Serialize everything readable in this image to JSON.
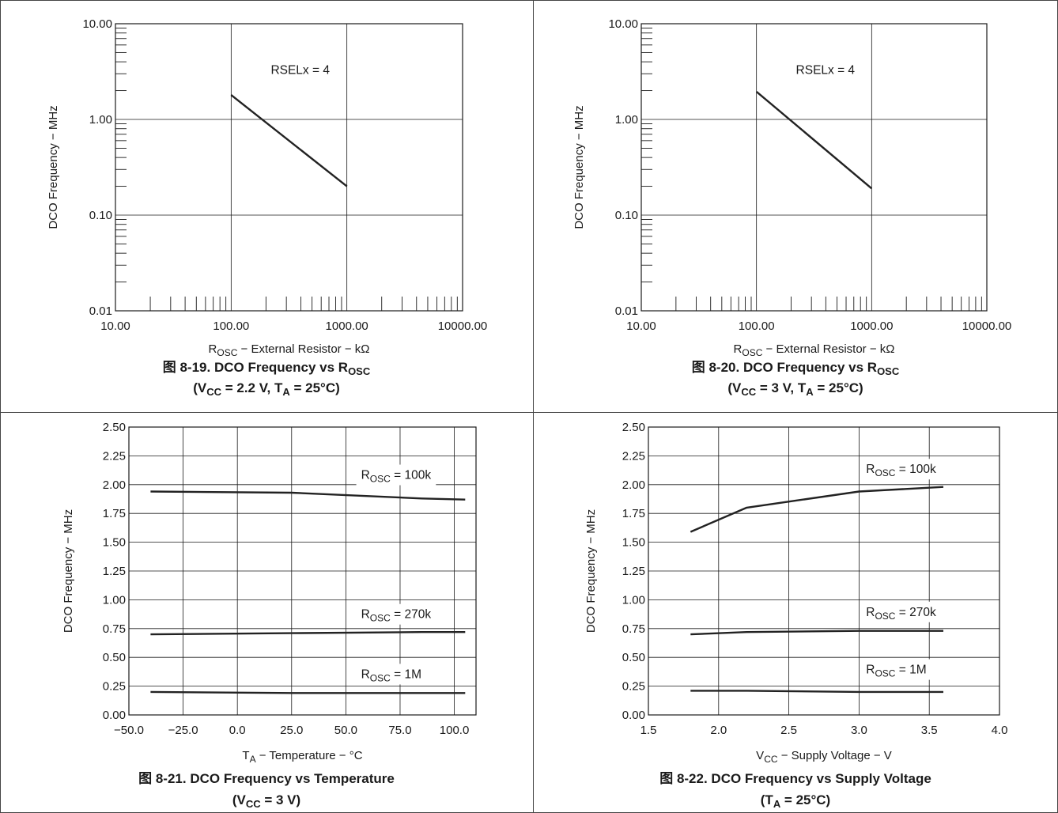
{
  "chart_data": [
    {
      "type": "line",
      "title": "DCO Frequency vs R",
      "title_number": "图 8-19.",
      "title_sub": "OSC",
      "conditions": {
        "pre": "(V",
        "sub": "CC",
        "mid": " = 2.2 V, T",
        "sub2": "A",
        "post": " = 25°C)"
      },
      "xscale": "log",
      "yscale": "log",
      "xlim": [
        10,
        10000
      ],
      "ylim": [
        0.01,
        10
      ],
      "xticks": [
        10,
        100,
        1000,
        10000
      ],
      "xtick_labels": [
        "10.00",
        "100.00",
        "1000.00",
        "10000.00"
      ],
      "yticks": [
        0.01,
        0.1,
        1,
        10
      ],
      "ytick_labels": [
        "0.01",
        "0.10",
        "1.00",
        "10.00"
      ],
      "xlabel": {
        "pre": "R",
        "sub": "OSC",
        "post": " − External Resistor − kΩ"
      },
      "ylabel": "DCO Frequency − MHz",
      "grid": true,
      "series": [
        {
          "name": "RSELx = 4",
          "x": [
            100,
            1000
          ],
          "y": [
            1.8,
            0.2
          ]
        }
      ],
      "annotations": [
        {
          "text": "RSELx = 4",
          "sub": "",
          "post": "",
          "x": 220,
          "y": 3.0
        }
      ]
    },
    {
      "type": "line",
      "title": "DCO Frequency vs R",
      "title_number": "图 8-20.",
      "title_sub": "OSC",
      "conditions": {
        "pre": "(V",
        "sub": "CC",
        "mid": " = 3 V, T",
        "sub2": "A",
        "post": " = 25°C)"
      },
      "xscale": "log",
      "yscale": "log",
      "xlim": [
        10,
        10000
      ],
      "ylim": [
        0.01,
        10
      ],
      "xticks": [
        10,
        100,
        1000,
        10000
      ],
      "xtick_labels": [
        "10.00",
        "100.00",
        "1000.00",
        "10000.00"
      ],
      "yticks": [
        0.01,
        0.1,
        1,
        10
      ],
      "ytick_labels": [
        "0.01",
        "0.10",
        "1.00",
        "10.00"
      ],
      "xlabel": {
        "pre": "R",
        "sub": "OSC",
        "post": " − External Resistor − kΩ"
      },
      "ylabel": "DCO Frequency − MHz",
      "grid": true,
      "series": [
        {
          "name": "RSELx = 4",
          "x": [
            100,
            1000
          ],
          "y": [
            1.95,
            0.19
          ]
        }
      ],
      "annotations": [
        {
          "text": "RSELx = 4",
          "sub": "",
          "post": "",
          "x": 220,
          "y": 3.0
        }
      ]
    },
    {
      "type": "line",
      "title": "DCO Frequency vs Temperature",
      "title_number": "图 8-21.",
      "title_sub": "",
      "conditions": {
        "pre": "(V",
        "sub": "CC",
        "mid": " = 3 V)",
        "sub2": "",
        "post": ""
      },
      "xscale": "linear",
      "yscale": "linear",
      "xlim": [
        -50,
        110
      ],
      "ylim": [
        0,
        2.5
      ],
      "xticks": [
        -50,
        -25,
        0,
        25,
        50,
        75,
        100
      ],
      "xtick_labels": [
        "−50.0",
        "−25.0",
        "0.0",
        "25.0",
        "50.0",
        "75.0",
        "100.0"
      ],
      "yticks": [
        0,
        0.25,
        0.5,
        0.75,
        1.0,
        1.25,
        1.5,
        1.75,
        2.0,
        2.25,
        2.5
      ],
      "ytick_labels": [
        "0.00",
        "0.25",
        "0.50",
        "0.75",
        "1.00",
        "1.25",
        "1.50",
        "1.75",
        "2.00",
        "2.25",
        "2.50"
      ],
      "xlabel": {
        "pre": "T",
        "sub": "A",
        "post": " − Temperature − °C"
      },
      "ylabel": "DCO Frequency − MHz",
      "grid": true,
      "series": [
        {
          "name": "R_OSC = 100k",
          "x": [
            -40,
            25,
            85,
            105
          ],
          "y": [
            1.94,
            1.93,
            1.88,
            1.87
          ]
        },
        {
          "name": "R_OSC = 270k",
          "x": [
            -40,
            25,
            85,
            105
          ],
          "y": [
            0.7,
            0.71,
            0.72,
            0.72
          ]
        },
        {
          "name": "R_OSC = 1M",
          "x": [
            -40,
            25,
            85,
            105
          ],
          "y": [
            0.2,
            0.19,
            0.19,
            0.19
          ]
        }
      ],
      "annotations": [
        {
          "text": "R",
          "sub": "OSC",
          "post": " = 100k",
          "x": 57,
          "y": 2.05
        },
        {
          "text": "R",
          "sub": "OSC",
          "post": " = 270k",
          "x": 57,
          "y": 0.84
        },
        {
          "text": "R",
          "sub": "OSC",
          "post": " = 1M",
          "x": 57,
          "y": 0.32
        }
      ]
    },
    {
      "type": "line",
      "title": "DCO Frequency vs Supply Voltage",
      "title_number": "图 8-22.",
      "title_sub": "",
      "conditions": {
        "pre": "(T",
        "sub": "A",
        "mid": " = 25°C)",
        "sub2": "",
        "post": ""
      },
      "xscale": "linear",
      "yscale": "linear",
      "xlim": [
        1.5,
        4.0
      ],
      "ylim": [
        0,
        2.5
      ],
      "xticks": [
        1.5,
        2.0,
        2.5,
        3.0,
        3.5,
        4.0
      ],
      "xtick_labels": [
        "1.5",
        "2.0",
        "2.5",
        "3.0",
        "3.5",
        "4.0"
      ],
      "yticks": [
        0,
        0.25,
        0.5,
        0.75,
        1.0,
        1.25,
        1.5,
        1.75,
        2.0,
        2.25,
        2.5
      ],
      "ytick_labels": [
        "0.00",
        "0.25",
        "0.50",
        "0.75",
        "1.00",
        "1.25",
        "1.50",
        "1.75",
        "2.00",
        "2.25",
        "2.50"
      ],
      "xlabel": {
        "pre": "V",
        "sub": "CC",
        "post": " − Supply Voltage − V"
      },
      "ylabel": "DCO Frequency − MHz",
      "grid": true,
      "series": [
        {
          "name": "R_OSC = 100k",
          "x": [
            1.8,
            2.2,
            3.0,
            3.6
          ],
          "y": [
            1.59,
            1.8,
            1.94,
            1.98
          ]
        },
        {
          "name": "R_OSC = 270k",
          "x": [
            1.8,
            2.2,
            3.0,
            3.6
          ],
          "y": [
            0.7,
            0.72,
            0.73,
            0.73
          ]
        },
        {
          "name": "R_OSC = 1M",
          "x": [
            1.8,
            2.2,
            3.0,
            3.6
          ],
          "y": [
            0.21,
            0.21,
            0.2,
            0.2
          ]
        }
      ],
      "annotations": [
        {
          "text": "R",
          "sub": "OSC",
          "post": " = 100k",
          "x": 3.05,
          "y": 2.1
        },
        {
          "text": "R",
          "sub": "OSC",
          "post": " = 270k",
          "x": 3.05,
          "y": 0.86
        },
        {
          "text": "R",
          "sub": "OSC",
          "post": " = 1M",
          "x": 3.05,
          "y": 0.36
        }
      ]
    }
  ],
  "colors": {
    "line": "#222222",
    "grid": "#1a1a1a",
    "frame": "#444444",
    "text": "#1a1a1a",
    "background": "#ffffff"
  }
}
